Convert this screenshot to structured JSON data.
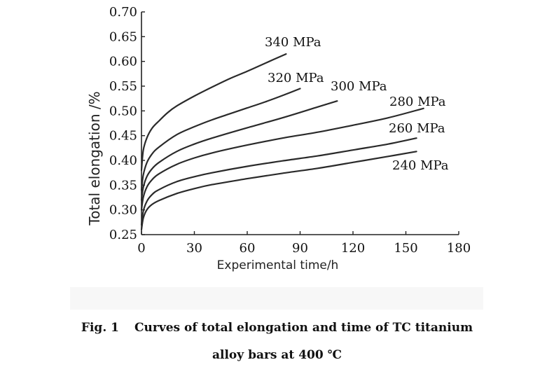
{
  "chart_data": {
    "type": "line",
    "xlabel": "Experimental time/h",
    "ylabel": "Total elongation /%",
    "xlim": [
      0,
      180
    ],
    "ylim": [
      0.25,
      0.7
    ],
    "xticks": [
      "0",
      "30",
      "60",
      "90",
      "120",
      "150",
      "180"
    ],
    "yticks": [
      "0.25",
      "0.30",
      "0.35",
      "0.40",
      "0.45",
      "0.50",
      "0.55",
      "0.60",
      "0.65",
      "0.70"
    ],
    "series": [
      {
        "name": "340 MPa",
        "x": [
          0,
          1,
          3,
          6,
          10,
          15,
          20,
          30,
          40,
          50,
          60,
          70,
          82
        ],
        "y": [
          0.38,
          0.42,
          0.445,
          0.465,
          0.48,
          0.497,
          0.51,
          0.53,
          0.548,
          0.565,
          0.58,
          0.596,
          0.615
        ]
      },
      {
        "name": "320 MPa",
        "x": [
          0,
          1,
          3,
          6,
          10,
          20,
          30,
          40,
          50,
          60,
          70,
          80,
          90
        ],
        "y": [
          0.34,
          0.37,
          0.395,
          0.413,
          0.427,
          0.452,
          0.468,
          0.482,
          0.494,
          0.506,
          0.518,
          0.531,
          0.545
        ]
      },
      {
        "name": "300 MPa",
        "x": [
          0,
          1,
          3,
          6,
          10,
          20,
          30,
          40,
          60,
          80,
          100,
          111
        ],
        "y": [
          0.32,
          0.345,
          0.367,
          0.383,
          0.396,
          0.418,
          0.433,
          0.445,
          0.466,
          0.486,
          0.508,
          0.52
        ]
      },
      {
        "name": "280 MPa",
        "x": [
          0,
          1,
          3,
          6,
          10,
          20,
          30,
          40,
          60,
          80,
          100,
          120,
          140,
          160
        ],
        "y": [
          0.3,
          0.325,
          0.346,
          0.361,
          0.373,
          0.392,
          0.405,
          0.415,
          0.431,
          0.445,
          0.457,
          0.471,
          0.486,
          0.505
        ]
      },
      {
        "name": "260 MPa",
        "x": [
          0,
          1,
          3,
          6,
          10,
          20,
          30,
          40,
          60,
          80,
          100,
          120,
          140,
          156
        ],
        "y": [
          0.27,
          0.297,
          0.317,
          0.331,
          0.341,
          0.357,
          0.367,
          0.375,
          0.388,
          0.399,
          0.409,
          0.421,
          0.433,
          0.445
        ]
      },
      {
        "name": "240 MPa",
        "x": [
          0,
          1,
          3,
          6,
          10,
          20,
          30,
          40,
          60,
          80,
          100,
          120,
          140,
          156
        ],
        "y": [
          0.26,
          0.283,
          0.3,
          0.311,
          0.319,
          0.333,
          0.343,
          0.351,
          0.363,
          0.374,
          0.384,
          0.396,
          0.408,
          0.418
        ]
      }
    ]
  },
  "caption": {
    "fig_label": "Fig. 1",
    "line1": "Curves of total elongation and time of TC titanium",
    "line2": "alloy bars at 400 ℃"
  }
}
